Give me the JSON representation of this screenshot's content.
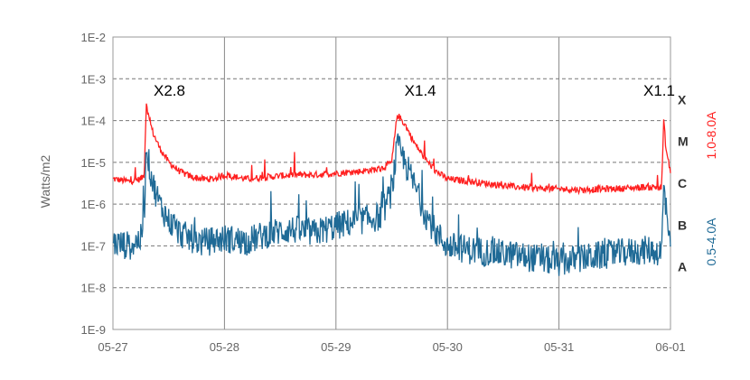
{
  "chart_data": {
    "type": "line",
    "xlabel": "",
    "ylabel": "Watts/m2",
    "y_scale": "log",
    "ylim": [
      1e-09,
      0.01
    ],
    "xlim": [
      "05-27",
      "06-01"
    ],
    "x_tick_labels": [
      "05-27",
      "05-28",
      "05-29",
      "05-30",
      "05-31",
      "06-01"
    ],
    "y_tick_labels": [
      "1E-9",
      "1E-8",
      "1E-7",
      "1E-6",
      "1E-5",
      "1E-4",
      "1E-3",
      "1E-2"
    ],
    "grid": true,
    "flare_classes": [
      {
        "label": "A",
        "threshold": 1e-08
      },
      {
        "label": "B",
        "threshold": 1e-07
      },
      {
        "label": "C",
        "threshold": 1e-06
      },
      {
        "label": "M",
        "threshold": 1e-05
      },
      {
        "label": "X",
        "threshold": 0.0001
      }
    ],
    "annotations": [
      {
        "text": "X2.8",
        "x": 0.3
      },
      {
        "text": "X1.4",
        "x": 2.55
      },
      {
        "text": "X1.1",
        "x": 4.85
      }
    ],
    "series": [
      {
        "name": "1.0-8.0A",
        "color": "#ff2020",
        "points": [
          [
            0.0,
            4e-06
          ],
          [
            0.15,
            3.5e-06
          ],
          [
            0.25,
            4e-06
          ],
          [
            0.28,
            5e-06
          ],
          [
            0.3,
            0.00028
          ],
          [
            0.32,
            0.00012
          ],
          [
            0.36,
            5e-05
          ],
          [
            0.42,
            2.2e-05
          ],
          [
            0.5,
            1e-05
          ],
          [
            0.6,
            6e-06
          ],
          [
            0.7,
            4.5e-06
          ],
          [
            0.8,
            4e-06
          ],
          [
            0.9,
            4e-06
          ],
          [
            1.0,
            5e-06
          ],
          [
            1.2,
            4e-06
          ],
          [
            1.4,
            4.5e-06
          ],
          [
            1.6,
            5e-06
          ],
          [
            1.8,
            5e-06
          ],
          [
            2.0,
            5.5e-06
          ],
          [
            2.2,
            6e-06
          ],
          [
            2.4,
            7e-06
          ],
          [
            2.5,
            1e-05
          ],
          [
            2.55,
            0.00014
          ],
          [
            2.62,
            8e-05
          ],
          [
            2.7,
            3e-05
          ],
          [
            2.8,
            1.2e-05
          ],
          [
            2.9,
            6e-06
          ],
          [
            3.0,
            4e-06
          ],
          [
            3.2,
            3.5e-06
          ],
          [
            3.4,
            3e-06
          ],
          [
            3.6,
            2.6e-06
          ],
          [
            3.8,
            2.4e-06
          ],
          [
            4.0,
            2.3e-06
          ],
          [
            4.2,
            2.2e-06
          ],
          [
            4.4,
            2.3e-06
          ],
          [
            4.6,
            2.4e-06
          ],
          [
            4.8,
            2.6e-06
          ],
          [
            4.92,
            2.5e-06
          ],
          [
            4.94,
            0.00011
          ],
          [
            4.96,
            2e-05
          ],
          [
            5.0,
            6e-06
          ]
        ]
      },
      {
        "name": "0.5-4.0A",
        "color": "#1f6a96",
        "points": [
          [
            0.0,
            1.2e-07
          ],
          [
            0.15,
            1e-07
          ],
          [
            0.25,
            1.5e-07
          ],
          [
            0.28,
            5e-07
          ],
          [
            0.3,
            3e-05
          ],
          [
            0.32,
            1e-05
          ],
          [
            0.36,
            3e-06
          ],
          [
            0.42,
            1e-06
          ],
          [
            0.5,
            4e-07
          ],
          [
            0.6,
            2e-07
          ],
          [
            0.7,
            1.5e-07
          ],
          [
            0.8,
            1.2e-07
          ],
          [
            1.0,
            1.5e-07
          ],
          [
            1.2,
            1.3e-07
          ],
          [
            1.4,
            2e-07
          ],
          [
            1.6,
            2.5e-07
          ],
          [
            1.8,
            2e-07
          ],
          [
            2.0,
            3e-07
          ],
          [
            2.2,
            4e-07
          ],
          [
            2.4,
            5e-07
          ],
          [
            2.5,
            2e-06
          ],
          [
            2.55,
            2.5e-05
          ],
          [
            2.62,
            1e-05
          ],
          [
            2.7,
            3e-06
          ],
          [
            2.8,
            6e-07
          ],
          [
            2.9,
            2e-07
          ],
          [
            3.0,
            1e-07
          ],
          [
            3.2,
            8e-08
          ],
          [
            3.4,
            7e-08
          ],
          [
            3.6,
            6e-08
          ],
          [
            3.8,
            5e-08
          ],
          [
            4.0,
            4e-08
          ],
          [
            4.2,
            5e-08
          ],
          [
            4.4,
            6e-08
          ],
          [
            4.6,
            7e-08
          ],
          [
            4.8,
            8e-08
          ],
          [
            4.92,
            7e-08
          ],
          [
            4.94,
            3e-06
          ],
          [
            4.96,
            6e-07
          ],
          [
            5.0,
            2e-07
          ]
        ]
      }
    ]
  }
}
